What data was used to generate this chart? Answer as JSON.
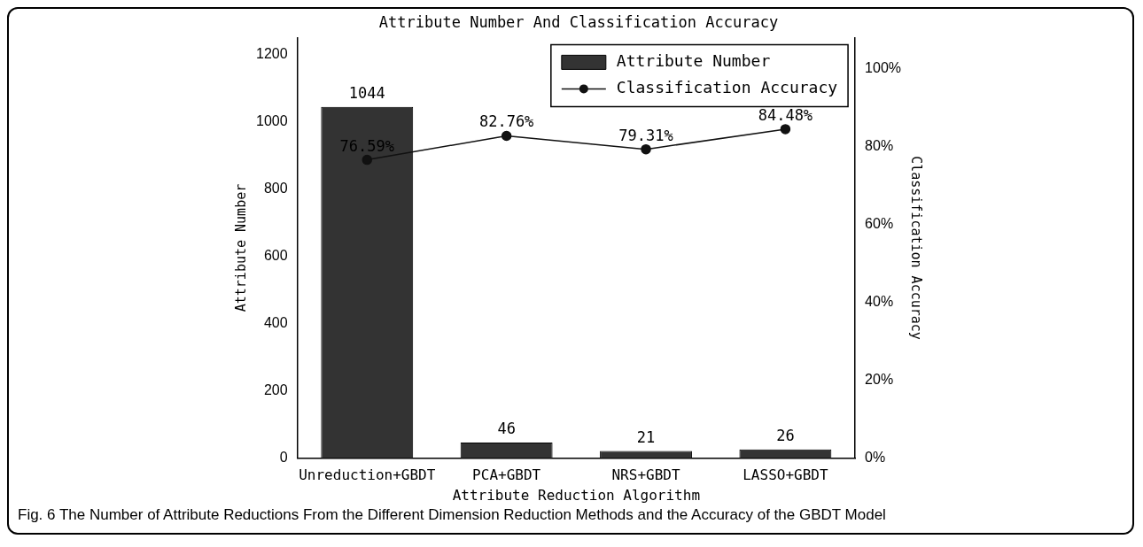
{
  "chart_data": {
    "type": "bar",
    "title": "Attribute Number And Classification Accuracy",
    "xlabel": "Attribute Reduction Algorithm",
    "ylabel": "Attribute Number",
    "y2label": "Classification Accuracy",
    "categories": [
      "Unreduction+GBDT",
      "PCA+GBDT",
      "NRS+GBDT",
      "LASSO+GBDT"
    ],
    "series": [
      {
        "name": "Attribute Number",
        "color": "#333333",
        "values": [
          1044,
          46,
          21,
          26
        ]
      },
      {
        "name": "Classification Accuracy",
        "type": "line",
        "axis": "y2",
        "color": "#111111",
        "values": [
          76.59,
          82.76,
          79.31,
          84.48
        ],
        "value_labels": [
          "76.59%",
          "82.76%",
          "79.31%",
          "84.48%"
        ]
      }
    ],
    "ylim": [
      0,
      1250
    ],
    "yticks": [
      0,
      200,
      400,
      600,
      800,
      1000,
      1200
    ],
    "y2lim": [
      0,
      108
    ],
    "y2ticks": [
      {
        "value": 0,
        "label": "0%"
      },
      {
        "value": 20,
        "label": "20%"
      },
      {
        "value": 40,
        "label": "40%"
      },
      {
        "value": 60,
        "label": "60%"
      },
      {
        "value": 80,
        "label": "80%"
      },
      {
        "value": 100,
        "label": "100%"
      }
    ],
    "data_labels": true,
    "legend": "top right",
    "marker": "circle",
    "line_style": "solid",
    "grid": false,
    "annotations": [
      "Fig. 6 The Number of Attribute Reductions From the Different Dimension Reduction Methods and the Accuracy of the GBDT Model"
    ]
  }
}
